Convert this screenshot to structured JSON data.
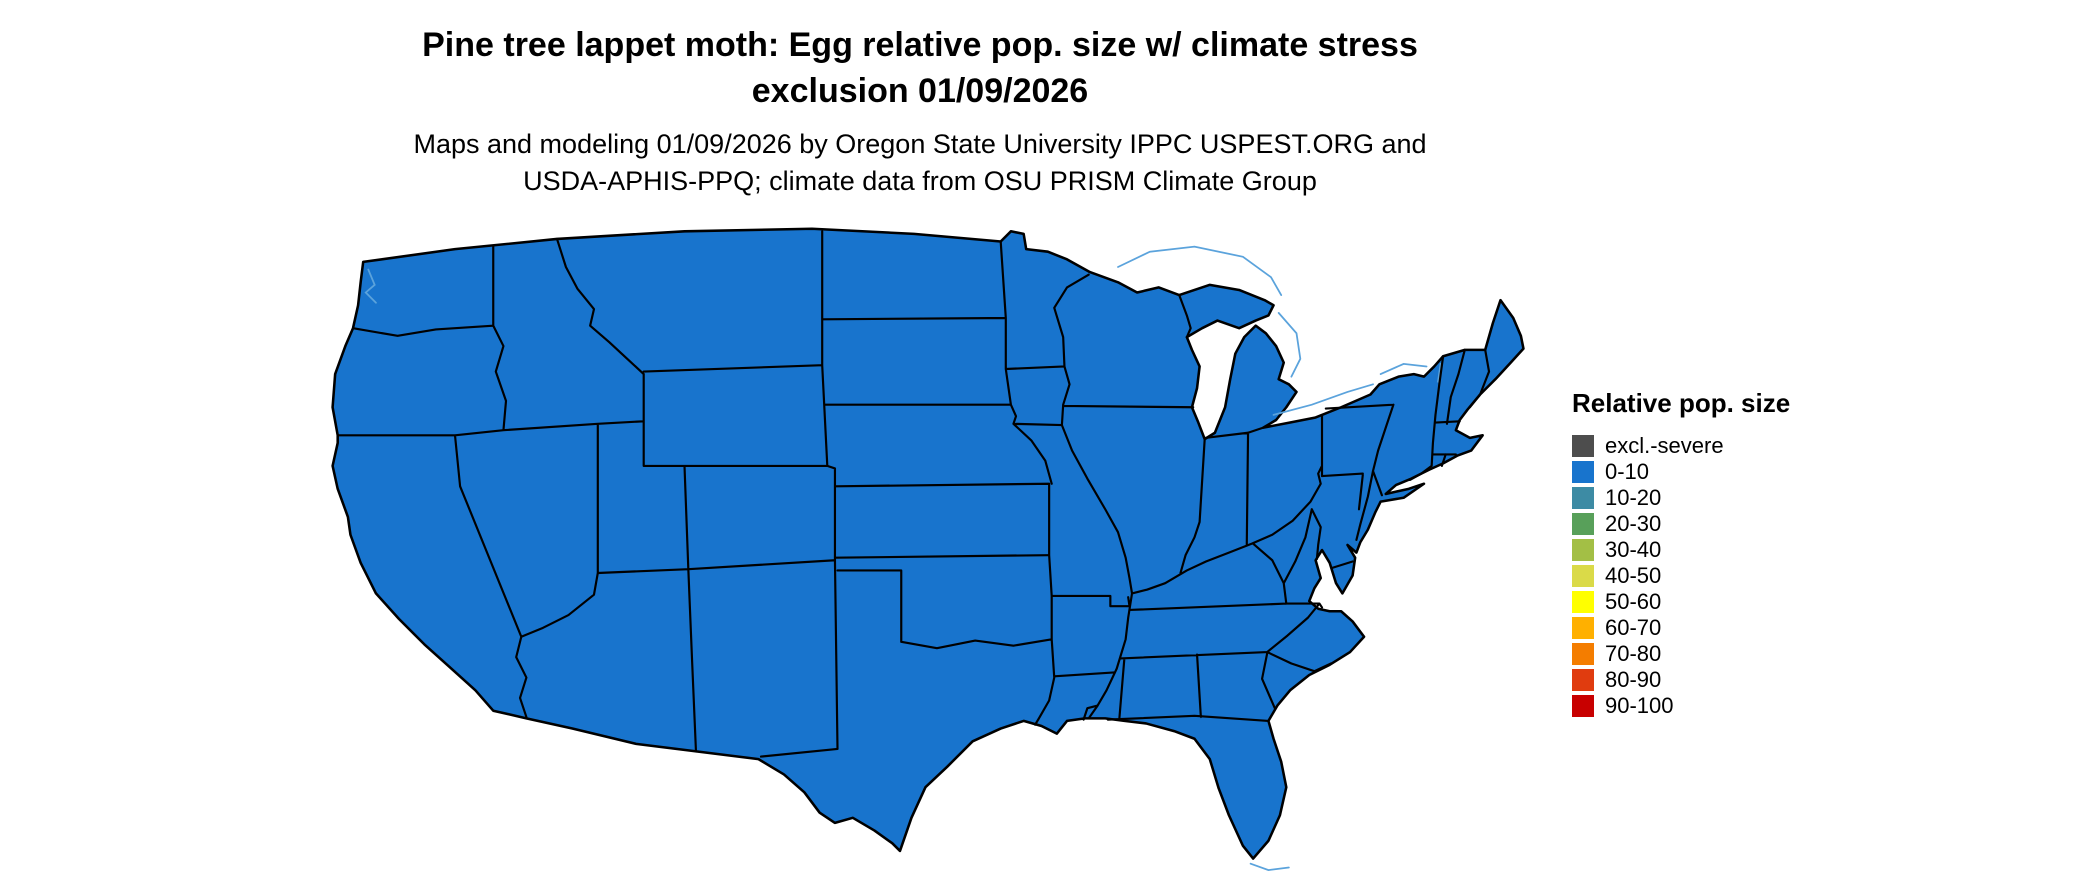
{
  "title": {
    "line1": "Pine tree lappet moth: Egg relative pop. size w/ climate stress",
    "line2": "exclusion 01/09/2026"
  },
  "subtitle": {
    "line1": "Maps and modeling 01/09/2026 by Oregon State University IPPC USPEST.ORG and",
    "line2": "USDA-APHIS-PPQ; climate data from OSU PRISM Climate Group"
  },
  "legend": {
    "title": "Relative pop. size",
    "items": [
      {
        "label": "excl.-severe",
        "color": "#4d4d4d"
      },
      {
        "label": "0-10",
        "color": "#1874cd"
      },
      {
        "label": "10-20",
        "color": "#3d8ba4"
      },
      {
        "label": "20-30",
        "color": "#58a05a"
      },
      {
        "label": "30-40",
        "color": "#a3bf45"
      },
      {
        "label": "40-50",
        "color": "#dada48"
      },
      {
        "label": "50-60",
        "color": "#ffff00"
      },
      {
        "label": "60-70",
        "color": "#ffb000"
      },
      {
        "label": "70-80",
        "color": "#f47d00"
      },
      {
        "label": "80-90",
        "color": "#e03c0f"
      },
      {
        "label": "90-100",
        "color": "#c80000"
      }
    ]
  },
  "map": {
    "fill_color": "#1874cd",
    "border_color": "#000000",
    "water_line_color": "#5ba3dc"
  },
  "chart_data": {
    "type": "choropleth",
    "region": "Contiguous United States by state",
    "classes": [
      "excl.-severe",
      "0-10",
      "10-20",
      "20-30",
      "30-40",
      "40-50",
      "50-60",
      "60-70",
      "70-80",
      "80-90",
      "90-100"
    ],
    "depicted_value": "All mapped states shown in class 0-10"
  }
}
